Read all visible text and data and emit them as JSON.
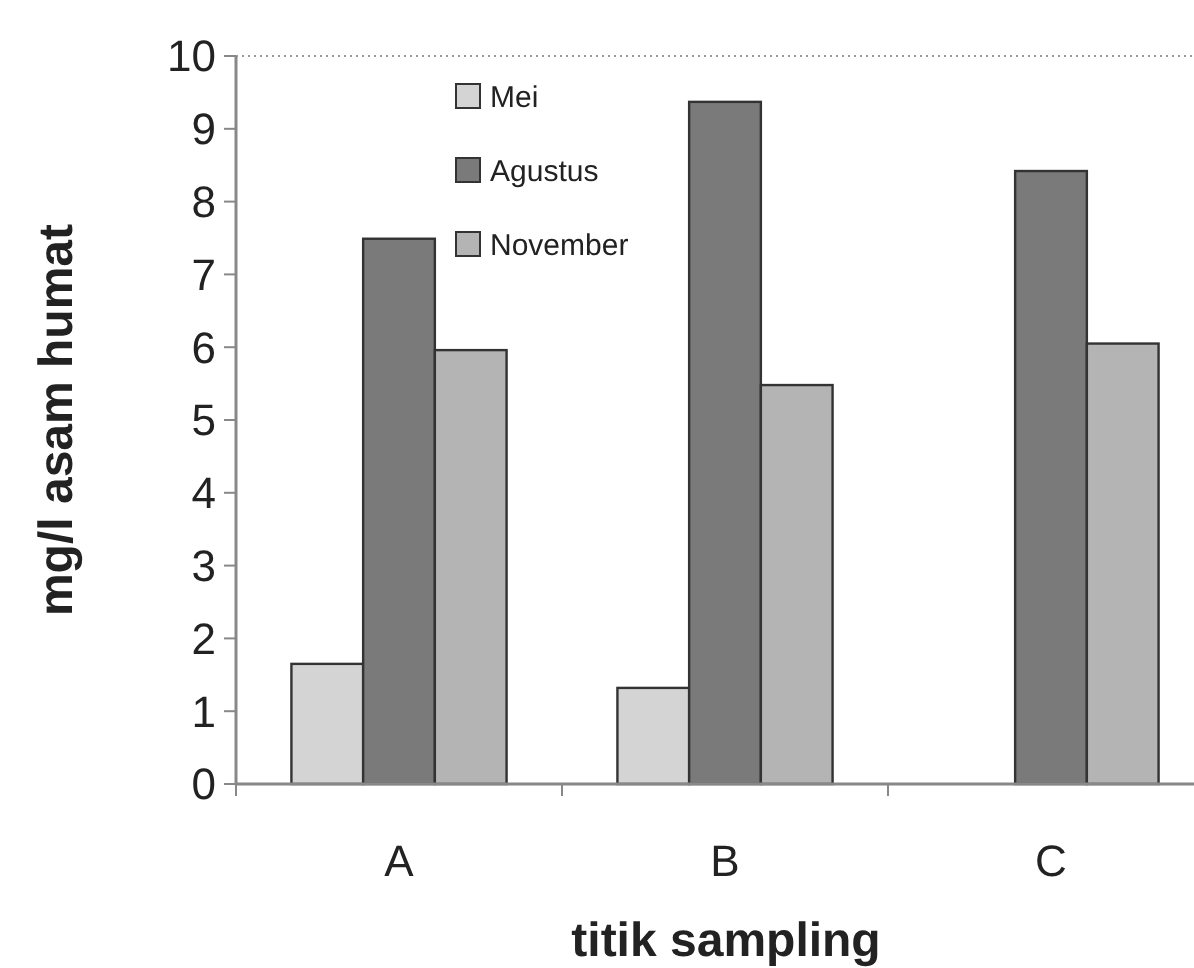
{
  "chart_data": {
    "type": "bar",
    "xlabel": "titik sampling",
    "ylabel": "mg/l asam humat",
    "categories": [
      "A",
      "B",
      "C"
    ],
    "series": [
      {
        "name": "Mei",
        "color": "#d4d4d4",
        "values": [
          1.65,
          1.32,
          0
        ]
      },
      {
        "name": "Agustus",
        "color": "#7a7a7a",
        "values": [
          7.49,
          9.37,
          8.42
        ]
      },
      {
        "name": "November",
        "color": "#b4b4b4",
        "values": [
          5.96,
          5.48,
          6.05
        ]
      }
    ],
    "ylim": [
      0,
      10
    ],
    "yticks": [
      0,
      1,
      2,
      3,
      4,
      5,
      6,
      7,
      8,
      9,
      10
    ],
    "legend": "top left",
    "grid": false
  }
}
